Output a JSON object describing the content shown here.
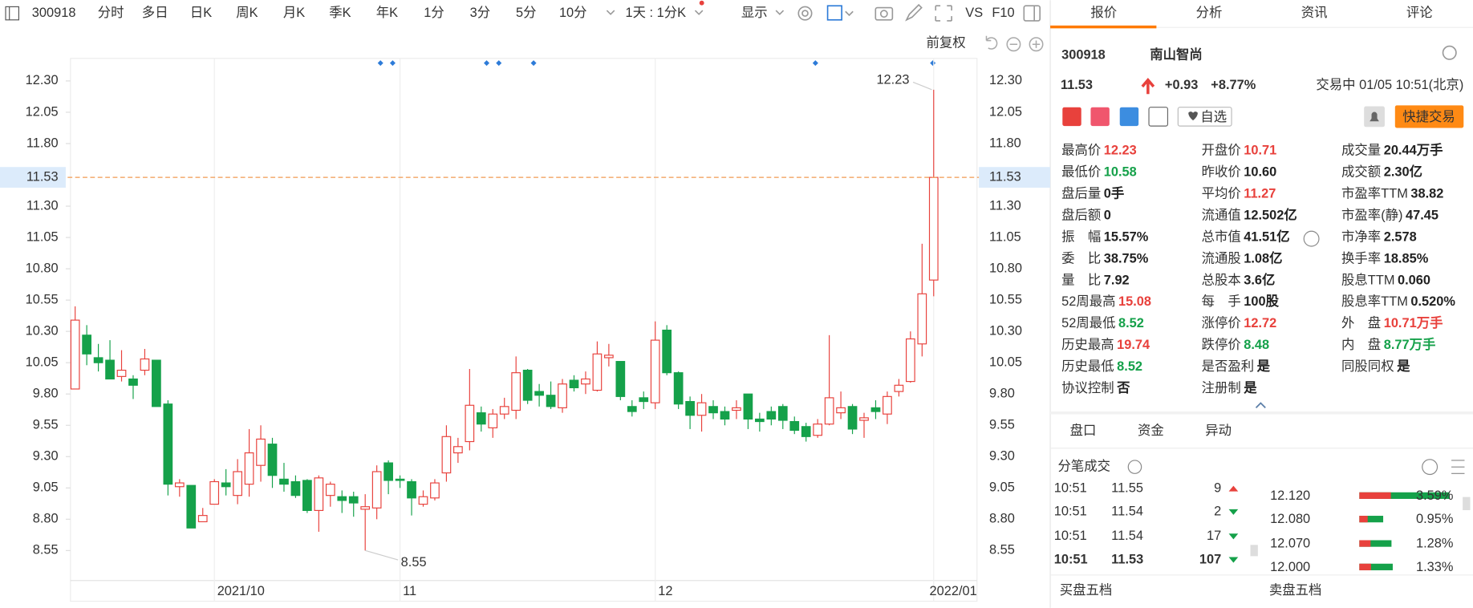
{
  "toolbar": {
    "code": "300918",
    "periods": [
      "分时",
      "多日",
      "日K",
      "周K",
      "月K",
      "季K",
      "年K",
      "1分",
      "3分",
      "5分",
      "10分"
    ],
    "active": 2,
    "interval": "1天 : 1分K",
    "display": "显示",
    "vs": "VS",
    "f10": "F10",
    "adjust": "前复权"
  },
  "chart_data": {
    "type": "candlestick",
    "open": [
      9.84,
      10.27,
      10.09,
      10.07,
      9.94,
      9.92,
      9.99,
      10.07,
      9.72,
      9.06,
      9.07,
      8.78,
      8.92,
      9.09,
      8.99,
      9.08,
      9.23,
      9.4,
      9.12,
      9.1,
      9.11,
      8.87,
      8.99,
      8.98,
      8.98,
      8.88,
      8.89,
      9.25,
      9.12,
      9.1,
      8.92,
      8.97,
      9.17,
      9.33,
      9.42,
      9.65,
      9.53,
      9.64,
      9.67,
      9.99,
      9.82,
      9.79,
      9.69,
      9.91,
      9.88,
      9.83,
      10.09,
      10.06,
      9.7,
      9.77,
      9.73,
      10.31,
      9.97,
      9.74,
      9.63,
      9.7,
      9.66,
      9.67,
      9.8,
      9.6,
      9.66,
      9.7,
      9.58,
      9.54,
      9.47,
      9.56,
      9.65,
      9.7,
      9.59,
      9.69,
      9.64,
      9.82,
      9.9,
      10.2,
      10.71
    ],
    "high": [
      10.5,
      10.35,
      10.2,
      10.23,
      10.15,
      9.95,
      10.16,
      10.07,
      9.75,
      9.12,
      9.07,
      8.89,
      9.12,
      9.2,
      9.28,
      9.52,
      9.55,
      9.45,
      9.25,
      9.15,
      9.12,
      9.15,
      9.1,
      9.03,
      9.02,
      9.0,
      9.23,
      9.27,
      9.15,
      9.12,
      9.03,
      9.12,
      9.55,
      9.45,
      10.0,
      9.7,
      9.68,
      9.77,
      10.1,
      10.0,
      9.88,
      9.9,
      9.92,
      9.95,
      9.98,
      10.22,
      10.2,
      10.06,
      9.75,
      9.82,
      10.38,
      10.35,
      9.98,
      9.78,
      9.8,
      9.75,
      9.7,
      9.75,
      9.8,
      9.65,
      9.7,
      9.72,
      9.62,
      9.57,
      9.6,
      10.27,
      9.82,
      9.72,
      9.65,
      9.75,
      9.82,
      9.92,
      10.3,
      11.0,
      12.23
    ],
    "low": [
      9.84,
      10.03,
      9.98,
      9.92,
      9.9,
      9.76,
      9.95,
      9.7,
      8.99,
      8.98,
      8.73,
      8.78,
      8.92,
      8.99,
      8.92,
      8.98,
      9.1,
      9.05,
      9.02,
      8.97,
      8.85,
      8.7,
      8.9,
      8.85,
      8.82,
      8.55,
      8.8,
      9.0,
      9.05,
      8.83,
      8.9,
      8.95,
      9.1,
      9.25,
      9.35,
      9.5,
      9.45,
      9.6,
      9.6,
      9.72,
      9.7,
      9.68,
      9.65,
      9.82,
      9.8,
      9.82,
      10.02,
      9.75,
      9.62,
      9.68,
      9.68,
      9.95,
      9.68,
      9.52,
      9.5,
      9.6,
      9.55,
      9.6,
      9.52,
      9.5,
      9.55,
      9.52,
      9.48,
      9.42,
      9.45,
      9.55,
      9.6,
      9.48,
      9.45,
      9.6,
      9.56,
      9.78,
      9.89,
      10.1,
      10.58
    ],
    "close": [
      10.39,
      10.12,
      10.05,
      9.92,
      9.99,
      9.87,
      10.08,
      9.7,
      9.08,
      9.09,
      8.73,
      8.83,
      9.1,
      9.06,
      9.18,
      9.33,
      9.44,
      9.15,
      9.08,
      8.99,
      8.87,
      9.13,
      9.08,
      8.95,
      8.93,
      8.9,
      9.18,
      9.11,
      9.11,
      8.97,
      8.98,
      9.09,
      9.46,
      9.38,
      9.71,
      9.56,
      9.64,
      9.7,
      9.97,
      9.75,
      9.79,
      9.7,
      9.88,
      9.85,
      9.92,
      10.12,
      10.11,
      9.78,
      9.66,
      9.74,
      10.23,
      9.97,
      9.72,
      9.63,
      9.73,
      9.65,
      9.6,
      9.69,
      9.6,
      9.58,
      9.6,
      9.59,
      9.51,
      9.46,
      9.56,
      9.77,
      9.69,
      9.52,
      9.61,
      9.66,
      9.78,
      9.87,
      10.24,
      10.6,
      11.53
    ],
    "up_color": "#e8413c",
    "down_color": "#15a14a",
    "ylim": [
      8.31,
      12.48
    ],
    "yticks": [
      {
        "value": 12.3,
        "label": "12.30"
      },
      12.05,
      {
        "value": 11.8,
        "label": "11.80"
      },
      {
        "value": 11.3,
        "label": "11.30"
      },
      11.05,
      {
        "value": 10.8,
        "label": "10.80"
      },
      10.55,
      {
        "value": 10.3,
        "label": "10.30"
      },
      10.05,
      {
        "value": 9.8,
        "label": "9.80"
      },
      9.55,
      {
        "value": 9.3,
        "label": "9.30"
      },
      9.05,
      {
        "value": 8.8,
        "label": "8.80"
      },
      8.55
    ],
    "xticks": [
      {
        "value": 12,
        "label": "2021/10"
      },
      {
        "value": 28,
        "label": "11"
      },
      {
        "value": 50,
        "label": "12"
      },
      {
        "value": 74,
        "label": "2022/01"
      }
    ],
    "grid": "x",
    "price_line": 11.53,
    "high_label": 12.23,
    "low_label": 8.55
  },
  "quote": {
    "tabs": [
      "报价",
      "分析",
      "资讯",
      "评论"
    ],
    "code": "300918",
    "name": "南山智尚",
    "price": "11.53",
    "change": "+0.93",
    "change_pct": "+8.77%",
    "status": "交易中 01/05 10:51(北京)",
    "watch": "自选",
    "quick_trade": "快捷交易",
    "stats": [
      [
        {
          "label": "最高价",
          "value": "12.23",
          "color": "#e8413c"
        },
        {
          "label": "最低价",
          "value": "10.58",
          "color": "#15a14a"
        },
        {
          "label": "盘后量",
          "value": "0手"
        },
        {
          "label": "盘后额",
          "value": "0"
        },
        {
          "label": "振　幅",
          "value": "15.57%"
        },
        {
          "label": "委　比",
          "value": "38.75%"
        },
        {
          "label": "量　比",
          "value": "7.92"
        },
        {
          "label": "52周最高",
          "value": "15.08",
          "color": "#e8413c"
        },
        {
          "label": "52周最低",
          "value": "8.52",
          "color": "#15a14a"
        },
        {
          "label": "历史最高",
          "value": "19.74",
          "color": "#e8413c"
        },
        {
          "label": "历史最低",
          "value": "8.52",
          "color": "#15a14a"
        },
        {
          "label": "协议控制",
          "value": "否"
        }
      ],
      [
        {
          "label": "开盘价",
          "value": "10.71",
          "color": "#e8413c"
        },
        {
          "label": "昨收价",
          "value": "10.60"
        },
        {
          "label": "平均价",
          "value": "11.27",
          "color": "#e8413c"
        },
        {
          "label": "流通值",
          "value": "12.502亿"
        },
        {
          "label": "总市值",
          "value": "41.51亿"
        },
        {
          "label": "流通股",
          "value": "1.08亿"
        },
        {
          "label": "总股本",
          "value": "3.6亿"
        },
        {
          "label": "每　手",
          "value": "100股"
        },
        {
          "label": "涨停价",
          "value": "12.72",
          "color": "#e8413c"
        },
        {
          "label": "跌停价",
          "value": "8.48",
          "color": "#15a14a"
        },
        {
          "label": "是否盈利",
          "value": "是"
        },
        {
          "label": "注册制",
          "value": "是"
        }
      ],
      [
        {
          "label": "成交量",
          "value": "20.44万手"
        },
        {
          "label": "成交额",
          "value": "2.30亿"
        },
        {
          "label": "市盈率TTM",
          "value": "38.82"
        },
        {
          "label": "市盈率(静)",
          "value": "47.45"
        },
        {
          "label": "市净率",
          "value": "2.578"
        },
        {
          "label": "换手率",
          "value": "18.85%"
        },
        {
          "label": "股息TTM",
          "value": "0.060"
        },
        {
          "label": "股息率TTM",
          "value": "0.520%"
        },
        {
          "label": "外　盘",
          "value": "10.71万手",
          "color": "#e8413c"
        },
        {
          "label": "内　盘",
          "value": "8.77万手",
          "color": "#15a14a"
        },
        {
          "label": "同股同权",
          "value": "是"
        }
      ]
    ],
    "subtabs": [
      "盘口",
      "资金",
      "异动"
    ],
    "trades_title": "分笔成交",
    "trades": [
      {
        "time": "10:51",
        "price": "11.55",
        "volume": "9",
        "direction": "up"
      },
      {
        "time": "10:51",
        "price": "11.54",
        "volume": "2",
        "direction": "down"
      },
      {
        "time": "10:51",
        "price": "11.54",
        "volume": "17",
        "direction": "down"
      },
      {
        "time": "10:51",
        "price": "11.53",
        "volume": "107",
        "direction": "down"
      }
    ],
    "distribution": [
      {
        "price": "12.120",
        "pct": 3.59,
        "pct_label": "3.59%"
      },
      {
        "price": "12.080",
        "pct": 0.95,
        "pct_label": "0.95%"
      },
      {
        "price": "12.070",
        "pct": 1.28,
        "pct_label": "1.28%"
      },
      {
        "price": "12.000",
        "pct": 1.33,
        "pct_label": "1.33%"
      }
    ],
    "bid_title": "买盘五档",
    "ask_title": "卖盘五档"
  }
}
